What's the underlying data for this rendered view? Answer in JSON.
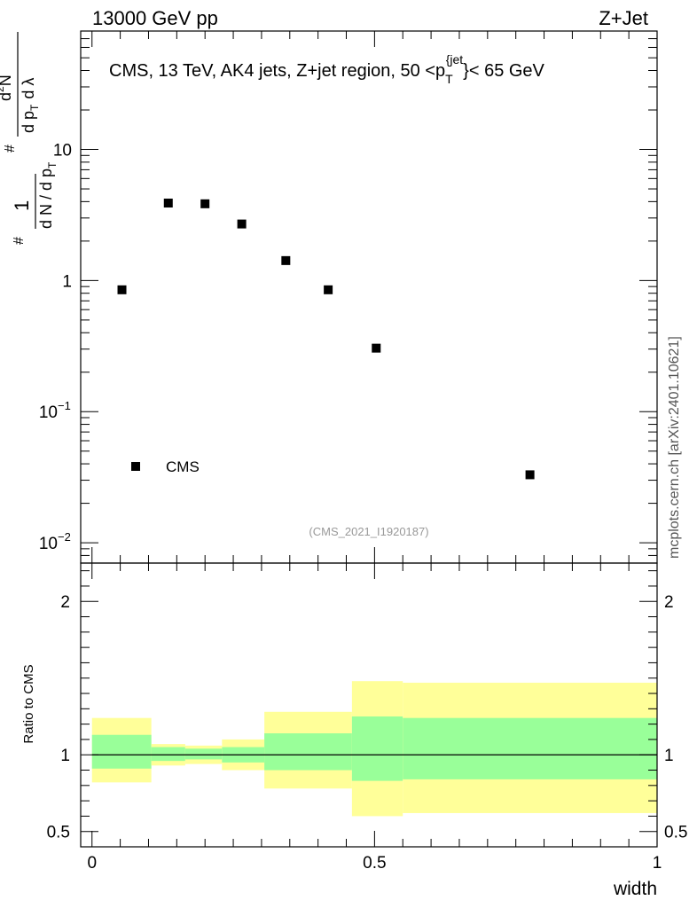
{
  "header": {
    "left": "13000 GeV pp",
    "right": "Z+Jet"
  },
  "watermark": "mcplots.cern.ch [arXiv:2401.10621]",
  "analysis_id": "(CMS_2021_I1920187)",
  "colors": {
    "band_inner": "#99ff99",
    "band_outer": "#ffff99",
    "data": "#000000",
    "analysis_text": "#999999"
  },
  "chart_data": [
    {
      "type": "scatter",
      "title": "CMS, 13 TeV, AK4 jets, Z+jet region, 50 <p_T^{jet}< 65 GeV",
      "title_parts": {
        "main": "CMS, 13 TeV, AK4 jets, Z+jet region, 50 <p",
        "sub": "T",
        "sup": "{jet",
        "tail": "}< 65 GeV"
      },
      "ylabel": "(1/(dN/dp_T)) d^2N/(dp_T dλ)",
      "ylabel_parts": {
        "a": "1",
        "b": "d N / d p",
        "c": "d",
        "d": "N",
        "e": "d p",
        "f": "d λ",
        "sub": "T",
        "hash": "#",
        "sq": "2"
      },
      "yscale": "log",
      "ylim": [
        0.007,
        80
      ],
      "xlim": [
        -0.02,
        1.0
      ],
      "ytick_labels": [
        {
          "value": 10,
          "label": "10"
        },
        {
          "value": 1,
          "label": "1"
        },
        {
          "value": 0.1,
          "base": "10",
          "exp": "−1"
        },
        {
          "value": 0.01,
          "base": "10",
          "exp": "−2"
        }
      ],
      "series": [
        {
          "name": "CMS",
          "x": [
            0.053,
            0.135,
            0.2,
            0.265,
            0.343,
            0.418,
            0.503,
            0.775
          ],
          "y": [
            0.85,
            3.9,
            3.85,
            2.7,
            1.42,
            0.85,
            0.305,
            0.033
          ]
        }
      ],
      "legend": {
        "label": "CMS",
        "position": "bottom-left"
      }
    },
    {
      "type": "area",
      "ylabel": "Ratio to CMS",
      "xlabel": "width",
      "ylim": [
        0.4,
        2.25
      ],
      "xlim": [
        -0.02,
        1.0
      ],
      "xtick_labels": [
        {
          "value": 0,
          "label": "0"
        },
        {
          "value": 0.5,
          "label": "0.5"
        },
        {
          "value": 1,
          "label": "1"
        }
      ],
      "ytick_labels": [
        {
          "value": 2,
          "label": "2"
        },
        {
          "value": 1,
          "label": "1"
        },
        {
          "value": 0.5,
          "label": "0.5"
        }
      ],
      "reference_line": 1,
      "bins": [
        {
          "x0": 0.0,
          "x1": 0.105,
          "outer": [
            0.82,
            1.24
          ],
          "inner": [
            0.91,
            1.13
          ]
        },
        {
          "x0": 0.105,
          "x1": 0.165,
          "outer": [
            0.93,
            1.07
          ],
          "inner": [
            0.96,
            1.05
          ]
        },
        {
          "x0": 0.165,
          "x1": 0.23,
          "outer": [
            0.94,
            1.06
          ],
          "inner": [
            0.97,
            1.04
          ]
        },
        {
          "x0": 0.23,
          "x1": 0.305,
          "outer": [
            0.9,
            1.1
          ],
          "inner": [
            0.95,
            1.05
          ]
        },
        {
          "x0": 0.305,
          "x1": 0.46,
          "outer": [
            0.78,
            1.28
          ],
          "inner": [
            0.9,
            1.14
          ]
        },
        {
          "x0": 0.46,
          "x1": 0.55,
          "outer": [
            0.6,
            1.48
          ],
          "inner": [
            0.83,
            1.25
          ]
        },
        {
          "x0": 0.55,
          "x1": 1.0,
          "outer": [
            0.62,
            1.47
          ],
          "inner": [
            0.84,
            1.24
          ]
        }
      ]
    }
  ]
}
